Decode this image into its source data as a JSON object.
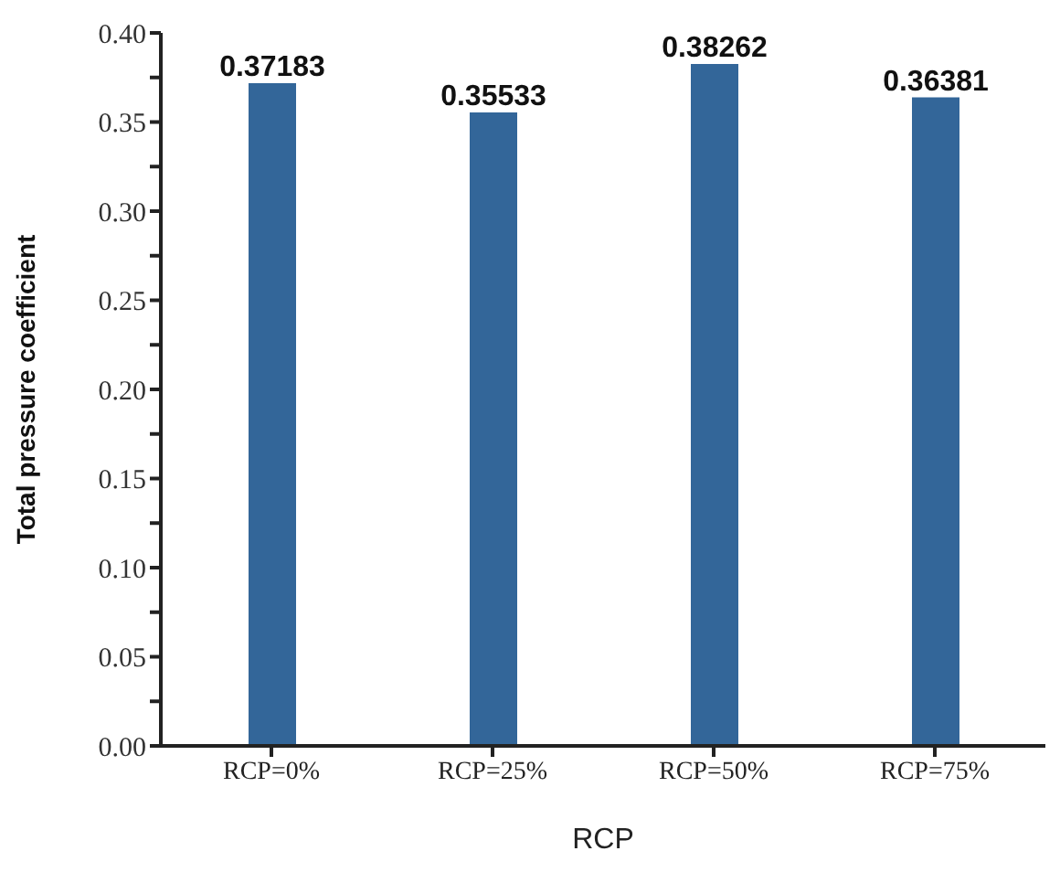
{
  "chart_data": {
    "type": "bar",
    "xlabel": "RCP",
    "ylabel": "Total pressure coefficient",
    "categories": [
      "RCP=0%",
      "RCP=25%",
      "RCP=50%",
      "RCP=75%"
    ],
    "values": [
      0.37183,
      0.35533,
      0.38262,
      0.36381
    ],
    "color": "#336699",
    "ylim": [
      0,
      0.4
    ],
    "yticks": [
      {
        "value": 0,
        "label": "0.00"
      },
      {
        "value": 0.025,
        "label": null
      },
      {
        "value": 0.05,
        "label": "0.05"
      },
      {
        "value": 0.075,
        "label": null
      },
      {
        "value": 0.1,
        "label": "0.10"
      },
      {
        "value": 0.125,
        "label": null
      },
      {
        "value": 0.15,
        "label": "0.15"
      },
      {
        "value": 0.175,
        "label": null
      },
      {
        "value": 0.2,
        "label": "0.20"
      },
      {
        "value": 0.225,
        "label": null
      },
      {
        "value": 0.25,
        "label": "0.25"
      },
      {
        "value": 0.275,
        "label": null
      },
      {
        "value": 0.3,
        "label": "0.30"
      },
      {
        "value": 0.325,
        "label": null
      },
      {
        "value": 0.35,
        "label": "0.35"
      },
      {
        "value": 0.375,
        "label": null
      },
      {
        "value": 0.4,
        "label": "0.40"
      }
    ],
    "data_labels": true,
    "grid": false,
    "legend": false
  }
}
